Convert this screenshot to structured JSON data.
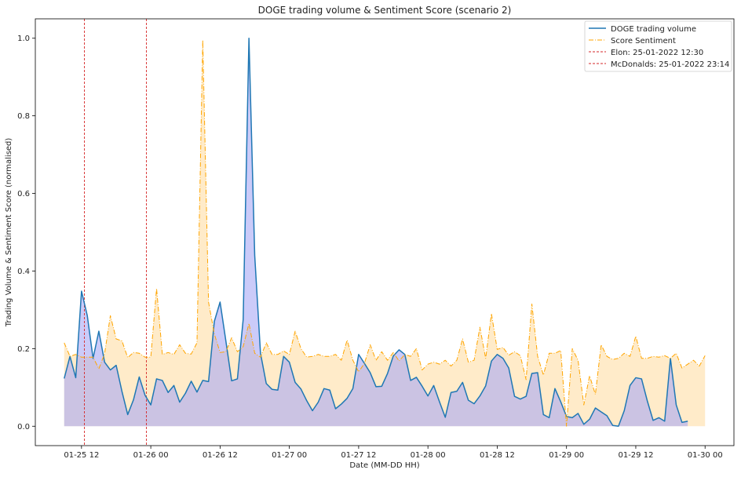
{
  "chart_data": {
    "type": "line",
    "title": "DOGE trading volume & Sentiment Score (scenario 2)",
    "xlabel": "Date (MM-DD HH)",
    "ylabel": "Trading Volume & Sentiment Score (normalised)",
    "x_start": "2022-01-25 09:00",
    "x_step_hours": 1,
    "xlim": [
      "2022-01-25 04:00",
      "2022-01-30 05:00"
    ],
    "ylim": [
      -0.05,
      1.05
    ],
    "x_ticks": [
      {
        "hour": 12,
        "label": "01-25 12"
      },
      {
        "hour": 24,
        "label": "01-26 00"
      },
      {
        "hour": 36,
        "label": "01-26 12"
      },
      {
        "hour": 48,
        "label": "01-27 00"
      },
      {
        "hour": 60,
        "label": "01-27 12"
      },
      {
        "hour": 72,
        "label": "01-28 00"
      },
      {
        "hour": 84,
        "label": "01-28 12"
      },
      {
        "hour": 96,
        "label": "01-29 00"
      },
      {
        "hour": 108,
        "label": "01-29 12"
      },
      {
        "hour": 120,
        "label": "01-30 00"
      }
    ],
    "y_ticks": [
      {
        "value": 0.0,
        "label": "0.0"
      },
      {
        "value": 0.2,
        "label": "0.2"
      },
      {
        "value": 0.4,
        "label": "0.4"
      },
      {
        "value": 0.6,
        "label": "0.6"
      },
      {
        "value": 0.8,
        "label": "0.8"
      },
      {
        "value": 1.0,
        "label": "1.0"
      }
    ],
    "series": [
      {
        "name": "DOGE trading volume",
        "color": "#1f77b4",
        "fill": "#a8a8f5",
        "style": "solid",
        "values": [
          0.123,
          0.18,
          0.125,
          0.348,
          0.285,
          0.175,
          0.245,
          0.165,
          0.145,
          0.157,
          0.09,
          0.03,
          0.068,
          0.127,
          0.08,
          0.055,
          0.122,
          0.118,
          0.087,
          0.105,
          0.062,
          0.085,
          0.116,
          0.088,
          0.118,
          0.115,
          0.27,
          0.32,
          0.22,
          0.117,
          0.122,
          0.275,
          1.0,
          0.44,
          0.188,
          0.11,
          0.095,
          0.093,
          0.18,
          0.165,
          0.113,
          0.096,
          0.066,
          0.04,
          0.062,
          0.097,
          0.093,
          0.045,
          0.057,
          0.072,
          0.097,
          0.185,
          0.162,
          0.138,
          0.102,
          0.103,
          0.136,
          0.181,
          0.197,
          0.185,
          0.118,
          0.126,
          0.103,
          0.078,
          0.105,
          0.063,
          0.023,
          0.087,
          0.09,
          0.113,
          0.067,
          0.058,
          0.078,
          0.104,
          0.168,
          0.185,
          0.175,
          0.15,
          0.077,
          0.07,
          0.077,
          0.136,
          0.138,
          0.03,
          0.022,
          0.097,
          0.063,
          0.025,
          0.022,
          0.033,
          0.005,
          0.018,
          0.047,
          0.037,
          0.027,
          0.002,
          0.0,
          0.04,
          0.105,
          0.125,
          0.122,
          0.065,
          0.015,
          0.022,
          0.013,
          0.175,
          0.055,
          0.01,
          0.013
        ]
      },
      {
        "name": "Score Sentiment",
        "color": "#ffa500",
        "fill": "#ffe8c0",
        "style": "dashdot",
        "values": [
          0.215,
          0.18,
          0.185,
          0.178,
          0.178,
          0.178,
          0.148,
          0.187,
          0.285,
          0.225,
          0.22,
          0.177,
          0.19,
          0.188,
          0.178,
          0.178,
          0.355,
          0.185,
          0.19,
          0.185,
          0.21,
          0.188,
          0.186,
          0.215,
          0.995,
          0.32,
          0.238,
          0.19,
          0.192,
          0.228,
          0.192,
          0.205,
          0.265,
          0.188,
          0.178,
          0.215,
          0.185,
          0.185,
          0.194,
          0.185,
          0.245,
          0.2,
          0.178,
          0.18,
          0.185,
          0.18,
          0.18,
          0.185,
          0.17,
          0.222,
          0.17,
          0.14,
          0.162,
          0.21,
          0.17,
          0.192,
          0.17,
          0.19,
          0.168,
          0.185,
          0.18,
          0.2,
          0.145,
          0.16,
          0.165,
          0.16,
          0.17,
          0.155,
          0.17,
          0.225,
          0.165,
          0.17,
          0.255,
          0.175,
          0.29,
          0.198,
          0.203,
          0.183,
          0.192,
          0.182,
          0.12,
          0.315,
          0.18,
          0.132,
          0.188,
          0.188,
          0.195,
          0.0,
          0.2,
          0.17,
          0.055,
          0.13,
          0.082,
          0.21,
          0.18,
          0.172,
          0.175,
          0.188,
          0.18,
          0.232,
          0.175,
          0.175,
          0.18,
          0.178,
          0.182,
          0.175,
          0.188,
          0.15,
          0.16,
          0.17,
          0.155,
          0.182
        ]
      }
    ],
    "events": [
      {
        "name": "Elon: 25-01-2022 12:30",
        "hour": 12.5,
        "color": "#d62728"
      },
      {
        "name": "McDonalds: 25-01-2022 23:14",
        "hour": 23.23,
        "color": "#d62728"
      }
    ],
    "legend_position": "top-right",
    "grid": false
  }
}
